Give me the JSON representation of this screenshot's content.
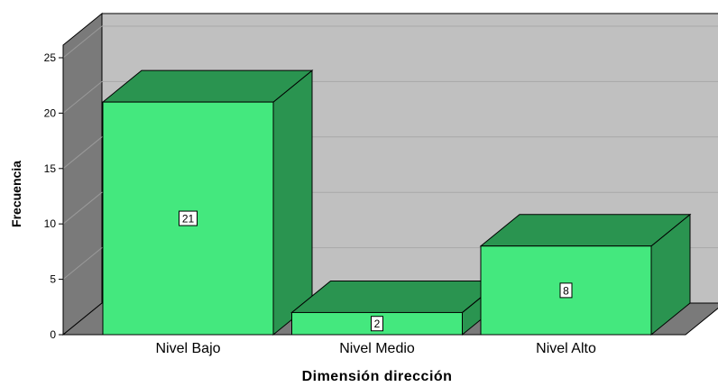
{
  "chart_data": {
    "type": "bar",
    "categories": [
      "Nivel Bajo",
      "Nivel Medio",
      "Nivel Alto"
    ],
    "values": [
      21,
      2,
      8
    ],
    "data_labels": [
      "21",
      "2",
      "8"
    ],
    "xlabel": "Dimensión dirección",
    "ylabel": "Frecuencia",
    "ylim": [
      0,
      25
    ],
    "yticks": [
      "0",
      "5",
      "10",
      "15",
      "20",
      "25"
    ],
    "style": "3d",
    "grid": true,
    "legend": "none",
    "colors": {
      "bar_front": "#44e87e",
      "bar_side": "#2a9450",
      "bar_top": "#2a9450",
      "back_wall": "#c0c0c0",
      "side_wall": "#7a7a7a",
      "floor": "#7a7a7a"
    }
  }
}
